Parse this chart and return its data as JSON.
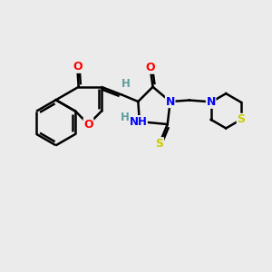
{
  "bg_color": "#ebebeb",
  "bond_color": "#000000",
  "bond_width": 1.8,
  "atom_colors": {
    "O": "#ff0000",
    "N": "#0000ff",
    "S": "#cccc00",
    "H": "#5f9ea0",
    "C": "#000000"
  },
  "font_size": 9,
  "fig_size": [
    3.0,
    3.0
  ],
  "dpi": 100
}
